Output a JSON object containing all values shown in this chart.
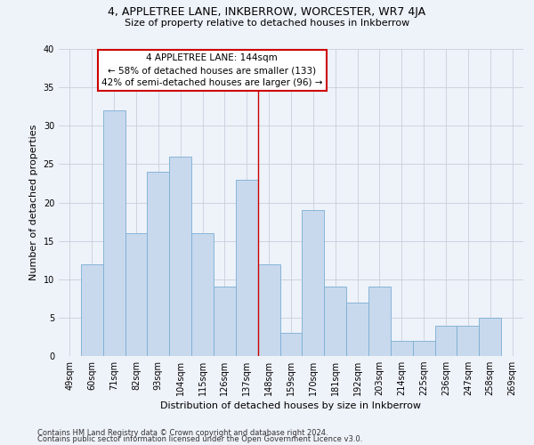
{
  "title": "4, APPLETREE LANE, INKBERROW, WORCESTER, WR7 4JA",
  "subtitle": "Size of property relative to detached houses in Inkberrow",
  "xlabel": "Distribution of detached houses by size in Inkberrow",
  "ylabel": "Number of detached properties",
  "bar_color": "#c8d9ed",
  "bar_edge_color": "#7aadd4",
  "background_color": "#eef2f9",
  "grid_color": "#c8d0dc",
  "categories": [
    "49sqm",
    "60sqm",
    "71sqm",
    "82sqm",
    "93sqm",
    "104sqm",
    "115sqm",
    "126sqm",
    "137sqm",
    "148sqm",
    "159sqm",
    "170sqm",
    "181sqm",
    "192sqm",
    "203sqm",
    "214sqm",
    "225sqm",
    "236sqm",
    "247sqm",
    "258sqm",
    "269sqm"
  ],
  "values": [
    0,
    12,
    32,
    16,
    24,
    26,
    16,
    9,
    23,
    12,
    3,
    19,
    9,
    7,
    9,
    2,
    2,
    4,
    4,
    5,
    0
  ],
  "ylim": [
    0,
    40
  ],
  "yticks": [
    0,
    5,
    10,
    15,
    20,
    25,
    30,
    35,
    40
  ],
  "vline_x": 8.5,
  "vline_color": "#cc0000",
  "annotation_text": "4 APPLETREE LANE: 144sqm\n← 58% of detached houses are smaller (133)\n42% of semi-detached houses are larger (96) →",
  "annotation_box_edgecolor": "#cc0000",
  "annotation_box_facecolor": "#ffffff",
  "footer1": "Contains HM Land Registry data © Crown copyright and database right 2024.",
  "footer2": "Contains public sector information licensed under the Open Government Licence v3.0.",
  "title_fontsize": 9,
  "subtitle_fontsize": 8,
  "ylabel_fontsize": 8,
  "xlabel_fontsize": 8,
  "tick_fontsize": 7,
  "annotation_fontsize": 7.5,
  "footer_fontsize": 6
}
